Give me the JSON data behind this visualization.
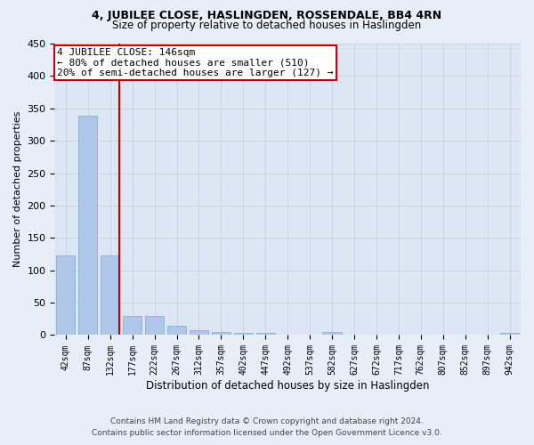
{
  "title1": "4, JUBILEE CLOSE, HASLINGDEN, ROSSENDALE, BB4 4RN",
  "title2": "Size of property relative to detached houses in Haslingden",
  "xlabel": "Distribution of detached houses by size in Haslingden",
  "ylabel": "Number of detached properties",
  "footer1": "Contains HM Land Registry data © Crown copyright and database right 2024.",
  "footer2": "Contains public sector information licensed under the Open Government Licence v3.0.",
  "bar_labels": [
    "42sqm",
    "87sqm",
    "132sqm",
    "177sqm",
    "222sqm",
    "267sqm",
    "312sqm",
    "357sqm",
    "402sqm",
    "447sqm",
    "492sqm",
    "537sqm",
    "582sqm",
    "627sqm",
    "672sqm",
    "717sqm",
    "762sqm",
    "807sqm",
    "852sqm",
    "897sqm",
    "942sqm"
  ],
  "bar_values": [
    123,
    339,
    123,
    29,
    29,
    14,
    8,
    5,
    4,
    4,
    0,
    0,
    5,
    0,
    0,
    0,
    0,
    0,
    0,
    0,
    4
  ],
  "bar_color": "#aec6e8",
  "bar_edge_color": "#7aaed0",
  "annotation_line1": "4 JUBILEE CLOSE: 146sqm",
  "annotation_line2": "← 80% of detached houses are smaller (510)",
  "annotation_line3": "20% of semi-detached houses are larger (127) →",
  "vline_color": "#cc0000",
  "annotation_box_color": "#cc0000",
  "grid_color": "#cccccc",
  "bg_color": "#e8eef8",
  "plot_bg_color": "#dce6f5",
  "ylim": [
    0,
    450
  ],
  "yticks": [
    0,
    50,
    100,
    150,
    200,
    250,
    300,
    350,
    400,
    450
  ]
}
